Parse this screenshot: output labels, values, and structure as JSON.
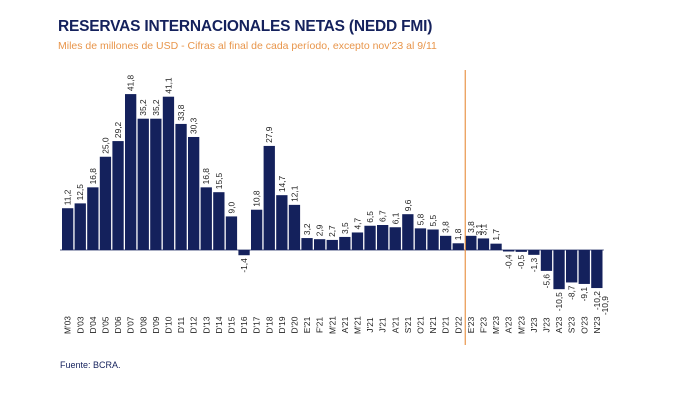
{
  "header": {
    "title": "RESERVAS INTERNACIONALES NETAS (NEDD FMI)",
    "subtitle": "Miles de millones de USD - Cifras al final de cada período, excepto nov'23 al 9/11"
  },
  "footer": {
    "source": "Fuente: BCRA."
  },
  "colors": {
    "bar": "#14215c",
    "title": "#14215c",
    "subtitle": "#e8954a",
    "marker_line": "#e8954a"
  },
  "chart_data": {
    "type": "bar",
    "title": "RESERVAS INTERNACIONALES NETAS (NEDD FMI)",
    "subtitle": "Miles de millones de USD - Cifras al final de cada período, excepto nov'23 al 9/11",
    "xlabel": "",
    "ylabel": "",
    "grid": false,
    "legend": "none",
    "categories": [
      "M'03",
      "D'03",
      "D'04",
      "D'05",
      "D'06",
      "D'07",
      "D'08",
      "D'09",
      "D'10",
      "D'11",
      "D'12",
      "D'13",
      "D'14",
      "D'15",
      "D'16",
      "D'17",
      "D'18",
      "D'19",
      "D'20",
      "E'21",
      "F'21",
      "M'21",
      "A'21",
      "M'21",
      "J'21",
      "J'21",
      "A'21",
      "S'21",
      "O'21",
      "N'21",
      "D'21",
      "D'22",
      "E'23",
      "F'23",
      "M'23",
      "A'23",
      "M'23",
      "J'23",
      "J'23",
      "A'23",
      "S'23",
      "O'23",
      "N'23"
    ],
    "values": [
      11.2,
      12.5,
      16.8,
      25.0,
      29.2,
      41.8,
      35.2,
      35.2,
      41.1,
      33.8,
      30.3,
      16.8,
      15.5,
      9.0,
      -1.4,
      10.8,
      27.9,
      14.7,
      12.1,
      3.2,
      2.9,
      2.7,
      3.5,
      4.7,
      6.5,
      6.7,
      6.1,
      9.6,
      5.8,
      5.5,
      3.8,
      1.8,
      3.8,
      3.1,
      1.7,
      -0.4,
      -0.5,
      -1.3,
      -5.6,
      -10.5,
      -8.7,
      -9.1,
      -10.2
    ],
    "value_labels": [
      "11,2",
      "12,5",
      "16,8",
      "25,0",
      "29,2",
      "41,8",
      "35,2",
      "35,2",
      "41,1",
      "33,8",
      "30,3",
      "16,8",
      "15,5",
      "9,0",
      "-1,4",
      "10,8",
      "27,9",
      "14,7",
      "12,1",
      "3,2",
      "2,9",
      "2,7",
      "3,5",
      "4,7",
      "6,5",
      "6,7",
      "6,1",
      "9,6",
      "5,8",
      "5,5",
      "3,8",
      "1,8",
      "3,8",
      "3,1",
      "1,7",
      "-0,4",
      "-0,5",
      "-1,3",
      "-5,6",
      "-10,5",
      "-8,7",
      "-9,1",
      "-10,2"
    ],
    "extra_value_labels": [
      "3,1",
      "-10,9"
    ],
    "vertical_marker_after_category": "D'22",
    "ylim": [
      -12,
      45
    ]
  }
}
